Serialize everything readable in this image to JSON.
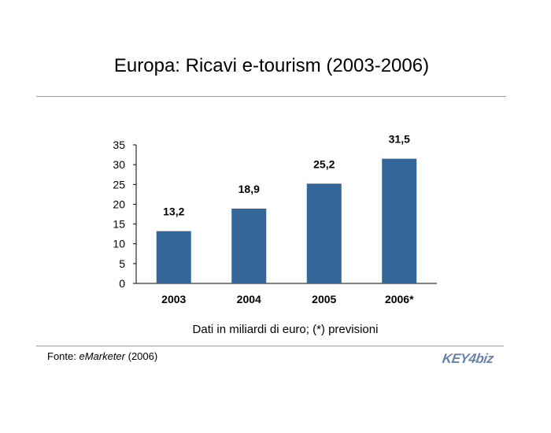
{
  "title": "Europa: Ricavi e-tourism (2003-2006)",
  "note": "Dati in miliardi di euro; (*) previsioni",
  "source": {
    "prefix": "Fonte: ",
    "name": "eMarketer",
    "suffix": " (2006)"
  },
  "logo": {
    "text": "KEY4biz"
  },
  "colors": {
    "bar": "#336699",
    "rule": "#999999"
  },
  "chart_data": {
    "type": "bar",
    "title": "Europa: Ricavi e-tourism (2003-2006)",
    "categories": [
      "2003",
      "2004",
      "2005",
      "2006*"
    ],
    "values": [
      13.2,
      18.9,
      25.2,
      31.5
    ],
    "value_labels": [
      "13,2",
      "18,9",
      "25,2",
      "31,5"
    ],
    "y_ticks": [
      0,
      5,
      10,
      15,
      20,
      25,
      30,
      35
    ],
    "ylim": [
      0,
      35
    ],
    "xlabel": "",
    "ylabel": "",
    "grid": false,
    "legend": "none"
  }
}
